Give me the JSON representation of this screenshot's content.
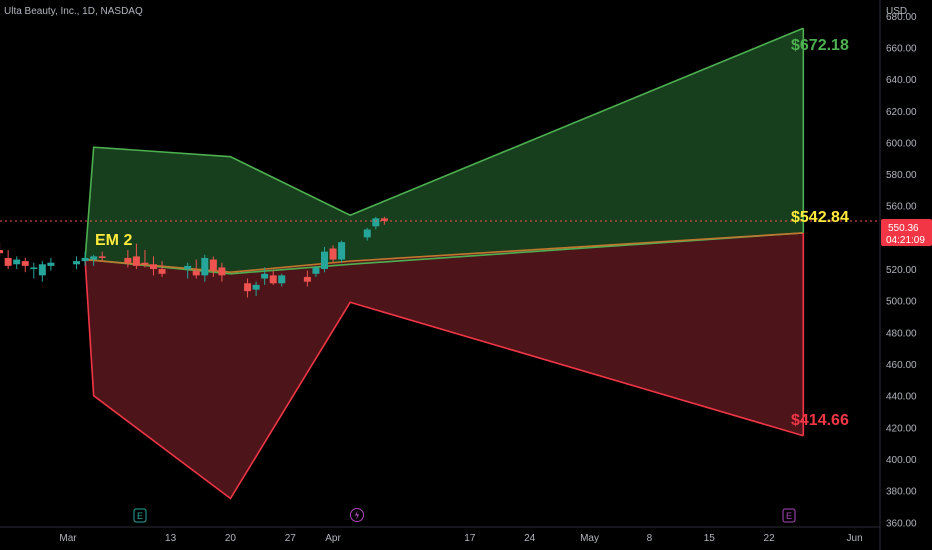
{
  "header": {
    "title": "Ulta Beauty, Inc., 1D, NASDAQ"
  },
  "price_axis": {
    "currency": "USD"
  },
  "price_tag": {
    "price": "550.36",
    "countdown": "04:21:09"
  },
  "annotations": {
    "em_label": "EM 2",
    "upper_value": "$672.18",
    "mid_value": "$542.84",
    "lower_value": "$414.66"
  },
  "colors": {
    "background": "#000000",
    "up": "#26a69a",
    "down": "#ef5350",
    "upper_line": "#4caf50",
    "upper_fill": "#1b4a22",
    "lower_line": "#f23645",
    "lower_fill": "#5a171f",
    "label_yellow": "#ffeb3b",
    "price_line": "#ef5350"
  },
  "event_icons": [
    "earnings-icon",
    "dividend-icon",
    "earnings-icon"
  ],
  "chart_data": {
    "type": "candlestick",
    "y_axis": {
      "ylim": [
        357,
        690
      ],
      "ticks": [
        360,
        380,
        400,
        420,
        440,
        460,
        480,
        500,
        520,
        540,
        560,
        580,
        600,
        620,
        640,
        660,
        680
      ],
      "tick_labels": [
        "360.00",
        "380.00",
        "400.00",
        "420.00",
        "440.00",
        "460.00",
        "480.00",
        "500.00",
        "520.00",
        "540.00",
        "560.00",
        "580.00",
        "600.00",
        "620.00",
        "640.00",
        "660.00",
        "680.00"
      ]
    },
    "x_axis": {
      "tick_labels": [
        "Mar",
        "13",
        "20",
        "27",
        "Apr",
        "17",
        "24",
        "May",
        "8",
        "15",
        "22",
        "Jun"
      ],
      "tick_days": [
        0,
        12,
        19,
        26,
        31,
        47,
        54,
        61,
        68,
        75,
        82,
        92
      ]
    },
    "candles": [
      {
        "day": -10,
        "o": 530,
        "h": 533,
        "l": 523,
        "c": 525
      },
      {
        "day": -9,
        "o": 527,
        "h": 535,
        "l": 525,
        "c": 532
      },
      {
        "day": -8,
        "o": 532,
        "h": 537,
        "l": 528,
        "c": 530
      },
      {
        "day": -7,
        "o": 527,
        "h": 532,
        "l": 520,
        "c": 522
      },
      {
        "day": -6,
        "o": 523,
        "h": 528,
        "l": 520,
        "c": 526
      },
      {
        "day": -5,
        "o": 525,
        "h": 527,
        "l": 518,
        "c": 522
      },
      {
        "day": -4,
        "o": 520,
        "h": 524,
        "l": 514,
        "c": 521
      },
      {
        "day": -3,
        "o": 516,
        "h": 525,
        "l": 512,
        "c": 523
      },
      {
        "day": -2,
        "o": 522,
        "h": 527,
        "l": 519,
        "c": 524
      },
      {
        "day": 1,
        "o": 523,
        "h": 528,
        "l": 520,
        "c": 525
      },
      {
        "day": 2,
        "o": 525,
        "h": 531,
        "l": 522,
        "c": 527
      },
      {
        "day": 3,
        "o": 526,
        "h": 529,
        "l": 522,
        "c": 528
      },
      {
        "day": 4,
        "o": 528,
        "h": 531,
        "l": 525,
        "c": 527
      },
      {
        "day": 7,
        "o": 527,
        "h": 532,
        "l": 521,
        "c": 524
      },
      {
        "day": 8,
        "o": 528,
        "h": 536,
        "l": 520,
        "c": 522
      },
      {
        "day": 9,
        "o": 524,
        "h": 532,
        "l": 521,
        "c": 523
      },
      {
        "day": 10,
        "o": 523,
        "h": 528,
        "l": 516,
        "c": 520
      },
      {
        "day": 11,
        "o": 520,
        "h": 525,
        "l": 515,
        "c": 517
      },
      {
        "day": 14,
        "o": 520,
        "h": 524,
        "l": 514,
        "c": 522
      },
      {
        "day": 15,
        "o": 519,
        "h": 526,
        "l": 514,
        "c": 516
      },
      {
        "day": 16,
        "o": 516,
        "h": 529,
        "l": 512,
        "c": 527
      },
      {
        "day": 17,
        "o": 526,
        "h": 528,
        "l": 515,
        "c": 519
      },
      {
        "day": 18,
        "o": 521,
        "h": 524,
        "l": 512,
        "c": 516
      },
      {
        "day": 21,
        "o": 511,
        "h": 514,
        "l": 502,
        "c": 506
      },
      {
        "day": 22,
        "o": 507,
        "h": 512,
        "l": 503,
        "c": 510
      },
      {
        "day": 23,
        "o": 514,
        "h": 521,
        "l": 510,
        "c": 517
      },
      {
        "day": 24,
        "o": 516,
        "h": 519,
        "l": 510,
        "c": 511
      },
      {
        "day": 25,
        "o": 511,
        "h": 517,
        "l": 509,
        "c": 516
      },
      {
        "day": 28,
        "o": 515,
        "h": 519,
        "l": 509,
        "c": 512
      },
      {
        "day": 29,
        "o": 517,
        "h": 522,
        "l": 515,
        "c": 521
      },
      {
        "day": 30,
        "o": 520,
        "h": 534,
        "l": 518,
        "c": 531
      },
      {
        "day": 31,
        "o": 533,
        "h": 535,
        "l": 524,
        "c": 526
      },
      {
        "day": 32,
        "o": 526,
        "h": 538,
        "l": 524,
        "c": 537
      },
      {
        "day": 35,
        "o": 540,
        "h": 546,
        "l": 538,
        "c": 545
      },
      {
        "day": 36,
        "o": 547,
        "h": 553,
        "l": 545,
        "c": 552
      },
      {
        "day": 37,
        "o": 552,
        "h": 553,
        "l": 548,
        "c": 550.36
      }
    ],
    "upper_band": [
      {
        "day": 2,
        "y": 526
      },
      {
        "day": 3,
        "y": 597
      },
      {
        "day": 19,
        "y": 591
      },
      {
        "day": 33,
        "y": 554
      },
      {
        "day": 86,
        "y": 672.18
      }
    ],
    "upper_inner": [
      {
        "day": 2,
        "y": 526
      },
      {
        "day": 19,
        "y": 517
      },
      {
        "day": 33,
        "y": 523
      },
      {
        "day": 86,
        "y": 542.84
      }
    ],
    "lower_inner": [
      {
        "day": 2,
        "y": 526
      },
      {
        "day": 19,
        "y": 518
      },
      {
        "day": 33,
        "y": 525
      },
      {
        "day": 86,
        "y": 542.84
      }
    ],
    "lower_band": [
      {
        "day": 2,
        "y": 526
      },
      {
        "day": 3,
        "y": 440
      },
      {
        "day": 19,
        "y": 375
      },
      {
        "day": 33,
        "y": 499
      },
      {
        "day": 86,
        "y": 414.66
      }
    ],
    "current_price": 550.36
  }
}
